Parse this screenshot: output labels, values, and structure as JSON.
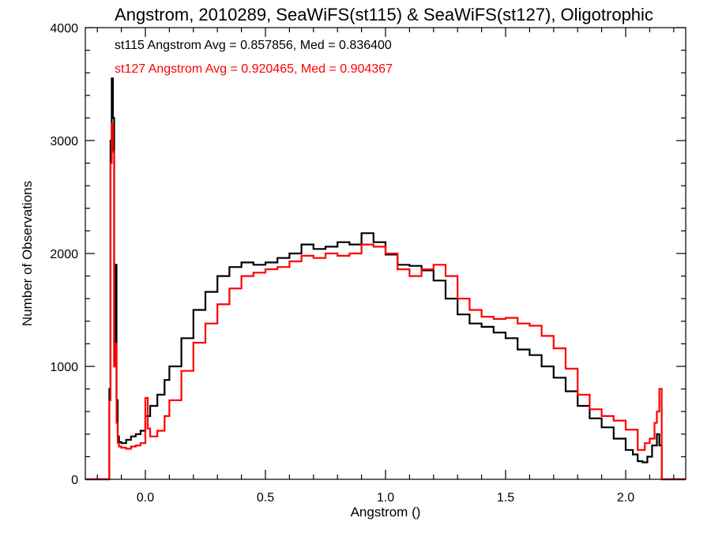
{
  "chart_data": {
    "type": "line",
    "title": "Angstrom, 2010289, SeaWiFS(st115) & SeaWiFS(st127), Oligotrophic",
    "xlabel": "Angstrom ()",
    "ylabel": "Number of Observations",
    "xlim": [
      -0.25,
      2.25
    ],
    "ylim": [
      0,
      4000
    ],
    "x_ticks": [
      0.0,
      0.5,
      1.0,
      1.5,
      2.0
    ],
    "x_tick_labels": [
      "0.0",
      "0.5",
      "1.0",
      "1.5",
      "2.0"
    ],
    "y_ticks": [
      0,
      1000,
      2000,
      3000,
      4000
    ],
    "y_tick_labels": [
      "0",
      "1000",
      "2000",
      "3000",
      "4000"
    ],
    "grid": false,
    "step": true,
    "annotations": [
      {
        "text": "st115 Angstrom Avg = 0.857856, Med = 0.836400",
        "color": "#000000"
      },
      {
        "text": "st127 Angstrom Avg = 0.920465, Med = 0.904367",
        "color": "#ff0000"
      }
    ],
    "series": [
      {
        "name": "st115",
        "color": "#000000",
        "x": [
          -0.25,
          -0.16,
          -0.15,
          -0.145,
          -0.14,
          -0.135,
          -0.13,
          -0.125,
          -0.12,
          -0.115,
          -0.11,
          -0.1,
          -0.08,
          -0.06,
          -0.04,
          -0.02,
          0.0,
          0.02,
          0.05,
          0.08,
          0.1,
          0.15,
          0.2,
          0.25,
          0.3,
          0.35,
          0.4,
          0.45,
          0.5,
          0.55,
          0.6,
          0.65,
          0.7,
          0.75,
          0.8,
          0.85,
          0.9,
          0.95,
          1.0,
          1.05,
          1.1,
          1.15,
          1.2,
          1.25,
          1.3,
          1.35,
          1.4,
          1.45,
          1.5,
          1.55,
          1.6,
          1.65,
          1.7,
          1.75,
          1.8,
          1.85,
          1.9,
          1.95,
          2.0,
          2.03,
          2.05,
          2.07,
          2.09,
          2.11,
          2.13,
          2.14,
          2.15,
          2.25
        ],
        "y": [
          0,
          0,
          800,
          3000,
          3550,
          3200,
          1000,
          1900,
          700,
          380,
          330,
          320,
          350,
          380,
          400,
          430,
          560,
          650,
          750,
          880,
          1000,
          1250,
          1500,
          1660,
          1800,
          1880,
          1920,
          1900,
          1920,
          1960,
          2000,
          2080,
          2040,
          2060,
          2100,
          2080,
          2180,
          2100,
          1990,
          1900,
          1890,
          1850,
          1760,
          1600,
          1460,
          1380,
          1350,
          1300,
          1250,
          1150,
          1100,
          1000,
          900,
          780,
          650,
          540,
          460,
          360,
          260,
          220,
          160,
          150,
          200,
          300,
          400,
          300,
          0,
          0
        ]
      },
      {
        "name": "st127",
        "color": "#ff0000",
        "x": [
          -0.25,
          -0.16,
          -0.15,
          -0.145,
          -0.14,
          -0.135,
          -0.13,
          -0.125,
          -0.12,
          -0.115,
          -0.11,
          -0.1,
          -0.08,
          -0.06,
          -0.04,
          -0.02,
          0.0,
          0.01,
          0.02,
          0.05,
          0.08,
          0.1,
          0.15,
          0.2,
          0.25,
          0.3,
          0.35,
          0.4,
          0.45,
          0.5,
          0.55,
          0.6,
          0.65,
          0.7,
          0.75,
          0.8,
          0.85,
          0.9,
          0.95,
          1.0,
          1.05,
          1.1,
          1.15,
          1.2,
          1.25,
          1.3,
          1.35,
          1.4,
          1.45,
          1.5,
          1.55,
          1.6,
          1.65,
          1.7,
          1.75,
          1.8,
          1.85,
          1.9,
          1.95,
          2.0,
          2.05,
          2.08,
          2.1,
          2.12,
          2.13,
          2.14,
          2.15,
          2.25
        ],
        "y": [
          0,
          0,
          700,
          2800,
          3150,
          2900,
          1000,
          1200,
          500,
          320,
          290,
          280,
          270,
          290,
          300,
          320,
          720,
          450,
          380,
          430,
          560,
          700,
          960,
          1210,
          1380,
          1550,
          1690,
          1800,
          1830,
          1860,
          1880,
          1930,
          1980,
          1960,
          2000,
          1980,
          2000,
          2080,
          2060,
          2000,
          1860,
          1800,
          1860,
          1900,
          1800,
          1600,
          1500,
          1440,
          1420,
          1430,
          1380,
          1360,
          1270,
          1160,
          980,
          750,
          620,
          560,
          520,
          440,
          260,
          320,
          360,
          500,
          600,
          800,
          0,
          0
        ]
      }
    ]
  }
}
